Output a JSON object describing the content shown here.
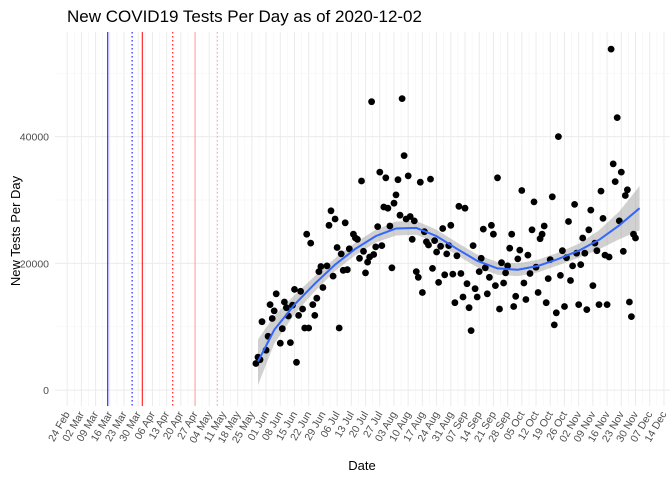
{
  "chart_data": {
    "type": "scatter",
    "title": "New COVID19 Tests Per Day as of 2020-12-02",
    "xlabel": "Date",
    "ylabel": "New Tests Per Day",
    "x_range": [
      "2020-02-18",
      "2020-12-17"
    ],
    "ylim": [
      -2500,
      56500
    ],
    "y_ticks": [
      0,
      20000,
      40000
    ],
    "x_ticks": [
      {
        "date": "2020-02-24",
        "label": "24 Feb"
      },
      {
        "date": "2020-03-02",
        "label": "02 Mar"
      },
      {
        "date": "2020-03-09",
        "label": "09 Mar"
      },
      {
        "date": "2020-03-16",
        "label": "16 Mar"
      },
      {
        "date": "2020-03-23",
        "label": "23 Mar"
      },
      {
        "date": "2020-03-30",
        "label": "30 Mar"
      },
      {
        "date": "2020-04-06",
        "label": "06 Apr"
      },
      {
        "date": "2020-04-13",
        "label": "13 Apr"
      },
      {
        "date": "2020-04-20",
        "label": "20 Apr"
      },
      {
        "date": "2020-04-27",
        "label": "27 Apr"
      },
      {
        "date": "2020-05-04",
        "label": "04 May"
      },
      {
        "date": "2020-05-11",
        "label": "11 May"
      },
      {
        "date": "2020-05-18",
        "label": "18 May"
      },
      {
        "date": "2020-05-25",
        "label": "25 May"
      },
      {
        "date": "2020-06-01",
        "label": "01 Jun"
      },
      {
        "date": "2020-06-08",
        "label": "08 Jun"
      },
      {
        "date": "2020-06-15",
        "label": "15 Jun"
      },
      {
        "date": "2020-06-22",
        "label": "22 Jun"
      },
      {
        "date": "2020-06-29",
        "label": "29 Jun"
      },
      {
        "date": "2020-07-06",
        "label": "06 Jul"
      },
      {
        "date": "2020-07-13",
        "label": "13 Jul"
      },
      {
        "date": "2020-07-20",
        "label": "20 Jul"
      },
      {
        "date": "2020-07-27",
        "label": "27 Jul"
      },
      {
        "date": "2020-08-03",
        "label": "03 Aug"
      },
      {
        "date": "2020-08-10",
        "label": "10 Aug"
      },
      {
        "date": "2020-08-17",
        "label": "17 Aug"
      },
      {
        "date": "2020-08-24",
        "label": "24 Aug"
      },
      {
        "date": "2020-08-31",
        "label": "31 Aug"
      },
      {
        "date": "2020-09-07",
        "label": "07 Sep"
      },
      {
        "date": "2020-09-14",
        "label": "14 Sep"
      },
      {
        "date": "2020-09-21",
        "label": "21 Sep"
      },
      {
        "date": "2020-09-28",
        "label": "28 Sep"
      },
      {
        "date": "2020-10-05",
        "label": "05 Oct"
      },
      {
        "date": "2020-10-12",
        "label": "12 Oct"
      },
      {
        "date": "2020-10-19",
        "label": "19 Oct"
      },
      {
        "date": "2020-10-26",
        "label": "26 Oct"
      },
      {
        "date": "2020-11-02",
        "label": "02 Nov"
      },
      {
        "date": "2020-11-09",
        "label": "09 Nov"
      },
      {
        "date": "2020-11-16",
        "label": "16 Nov"
      },
      {
        "date": "2020-11-23",
        "label": "23 Nov"
      },
      {
        "date": "2020-11-30",
        "label": "30 Nov"
      },
      {
        "date": "2020-12-07",
        "label": "07 Dec"
      },
      {
        "date": "2020-12-14",
        "label": "14 Dec"
      }
    ],
    "grid": true,
    "legend": "none",
    "point_color": "#000000",
    "trend_color": "#3366ff",
    "band_color": "#999999",
    "vlines": [
      {
        "date": "2020-03-15",
        "color": "#0000ff",
        "style": "solid"
      },
      {
        "date": "2020-03-27",
        "color": "#0000ff",
        "style": "dotted"
      },
      {
        "date": "2020-04-01",
        "color": "#ff0000",
        "style": "solid"
      },
      {
        "date": "2020-04-16",
        "color": "#ff0000",
        "style": "dotted"
      },
      {
        "date": "2020-04-27",
        "color": "#ff9999",
        "style": "solid"
      },
      {
        "date": "2020-05-08",
        "color": "#ff9999",
        "style": "dotted"
      }
    ],
    "trend": [
      {
        "date": "2020-05-28",
        "y": 4500,
        "lo": 800,
        "hi": 8000
      },
      {
        "date": "2020-06-05",
        "y": 9500,
        "lo": 7300,
        "hi": 11700
      },
      {
        "date": "2020-06-15",
        "y": 13500,
        "lo": 12000,
        "hi": 15000
      },
      {
        "date": "2020-06-25",
        "y": 16800,
        "lo": 15600,
        "hi": 18000
      },
      {
        "date": "2020-07-05",
        "y": 19800,
        "lo": 18800,
        "hi": 20800
      },
      {
        "date": "2020-07-15",
        "y": 22300,
        "lo": 21300,
        "hi": 23300
      },
      {
        "date": "2020-07-25",
        "y": 24300,
        "lo": 23300,
        "hi": 25300
      },
      {
        "date": "2020-08-04",
        "y": 25500,
        "lo": 24400,
        "hi": 26600
      },
      {
        "date": "2020-08-14",
        "y": 25600,
        "lo": 24500,
        "hi": 26700
      },
      {
        "date": "2020-08-24",
        "y": 24300,
        "lo": 23300,
        "hi": 25300
      },
      {
        "date": "2020-09-03",
        "y": 22300,
        "lo": 21300,
        "hi": 23300
      },
      {
        "date": "2020-09-13",
        "y": 20400,
        "lo": 19400,
        "hi": 21400
      },
      {
        "date": "2020-09-23",
        "y": 19200,
        "lo": 18200,
        "hi": 20200
      },
      {
        "date": "2020-10-03",
        "y": 19000,
        "lo": 18000,
        "hi": 20000
      },
      {
        "date": "2020-10-13",
        "y": 19600,
        "lo": 18600,
        "hi": 20600
      },
      {
        "date": "2020-10-23",
        "y": 20700,
        "lo": 19700,
        "hi": 21700
      },
      {
        "date": "2020-11-02",
        "y": 22000,
        "lo": 20900,
        "hi": 23100
      },
      {
        "date": "2020-11-12",
        "y": 23700,
        "lo": 22200,
        "hi": 25200
      },
      {
        "date": "2020-11-22",
        "y": 26000,
        "lo": 23800,
        "hi": 28200
      },
      {
        "date": "2020-12-02",
        "y": 28700,
        "lo": 25200,
        "hi": 32200
      }
    ],
    "points": [
      [
        "2020-05-27",
        4200
      ],
      [
        "2020-05-28",
        5200
      ],
      [
        "2020-05-29",
        4800
      ],
      [
        "2020-05-30",
        10800
      ],
      [
        "2020-06-01",
        6300
      ],
      [
        "2020-06-02",
        8500
      ],
      [
        "2020-06-03",
        13500
      ],
      [
        "2020-06-04",
        11300
      ],
      [
        "2020-06-05",
        12500
      ],
      [
        "2020-06-06",
        15200
      ],
      [
        "2020-06-08",
        7400
      ],
      [
        "2020-06-09",
        9700
      ],
      [
        "2020-06-10",
        13900
      ],
      [
        "2020-06-11",
        13000
      ],
      [
        "2020-06-12",
        11700
      ],
      [
        "2020-06-13",
        7500
      ],
      [
        "2020-06-14",
        13400
      ],
      [
        "2020-06-15",
        15900
      ],
      [
        "2020-06-16",
        4400
      ],
      [
        "2020-06-17",
        11800
      ],
      [
        "2020-06-18",
        15600
      ],
      [
        "2020-06-19",
        12800
      ],
      [
        "2020-06-20",
        9800
      ],
      [
        "2020-06-21",
        24600
      ],
      [
        "2020-06-22",
        9800
      ],
      [
        "2020-06-23",
        23200
      ],
      [
        "2020-06-24",
        13500
      ],
      [
        "2020-06-25",
        11800
      ],
      [
        "2020-06-26",
        14500
      ],
      [
        "2020-06-27",
        18700
      ],
      [
        "2020-06-28",
        19500
      ],
      [
        "2020-06-29",
        16200
      ],
      [
        "2020-07-01",
        19600
      ],
      [
        "2020-07-02",
        26000
      ],
      [
        "2020-07-03",
        28300
      ],
      [
        "2020-07-04",
        18000
      ],
      [
        "2020-07-05",
        27000
      ],
      [
        "2020-07-06",
        22500
      ],
      [
        "2020-07-07",
        9800
      ],
      [
        "2020-07-08",
        21500
      ],
      [
        "2020-07-09",
        18900
      ],
      [
        "2020-07-10",
        26400
      ],
      [
        "2020-07-11",
        19000
      ],
      [
        "2020-07-12",
        22300
      ],
      [
        "2020-07-14",
        24600
      ],
      [
        "2020-07-15",
        24000
      ],
      [
        "2020-07-16",
        23800
      ],
      [
        "2020-07-17",
        20800
      ],
      [
        "2020-07-18",
        33000
      ],
      [
        "2020-07-19",
        21900
      ],
      [
        "2020-07-20",
        18500
      ],
      [
        "2020-07-21",
        20200
      ],
      [
        "2020-07-22",
        21000
      ],
      [
        "2020-07-23",
        45500
      ],
      [
        "2020-07-24",
        21400
      ],
      [
        "2020-07-25",
        22600
      ],
      [
        "2020-07-26",
        25800
      ],
      [
        "2020-07-27",
        34400
      ],
      [
        "2020-07-28",
        22800
      ],
      [
        "2020-07-29",
        28900
      ],
      [
        "2020-07-30",
        33500
      ],
      [
        "2020-07-31",
        28700
      ],
      [
        "2020-08-01",
        25900
      ],
      [
        "2020-08-02",
        19300
      ],
      [
        "2020-08-03",
        29500
      ],
      [
        "2020-08-04",
        30800
      ],
      [
        "2020-08-05",
        33200
      ],
      [
        "2020-08-06",
        27600
      ],
      [
        "2020-08-07",
        46000
      ],
      [
        "2020-08-08",
        37000
      ],
      [
        "2020-08-09",
        27000
      ],
      [
        "2020-08-10",
        33800
      ],
      [
        "2020-08-11",
        27400
      ],
      [
        "2020-08-12",
        23800
      ],
      [
        "2020-08-13",
        26700
      ],
      [
        "2020-08-14",
        18700
      ],
      [
        "2020-08-15",
        17800
      ],
      [
        "2020-08-16",
        32800
      ],
      [
        "2020-08-17",
        15400
      ],
      [
        "2020-08-18",
        25000
      ],
      [
        "2020-08-19",
        23400
      ],
      [
        "2020-08-20",
        22900
      ],
      [
        "2020-08-21",
        33300
      ],
      [
        "2020-08-22",
        19200
      ],
      [
        "2020-08-23",
        23600
      ],
      [
        "2020-08-24",
        21800
      ],
      [
        "2020-08-25",
        17000
      ],
      [
        "2020-08-26",
        22700
      ],
      [
        "2020-08-27",
        25500
      ],
      [
        "2020-08-28",
        18200
      ],
      [
        "2020-08-29",
        21500
      ],
      [
        "2020-08-30",
        22800
      ],
      [
        "2020-08-31",
        26000
      ],
      [
        "2020-09-01",
        18300
      ],
      [
        "2020-09-02",
        13800
      ],
      [
        "2020-09-03",
        21200
      ],
      [
        "2020-09-04",
        29000
      ],
      [
        "2020-09-05",
        18400
      ],
      [
        "2020-09-06",
        14700
      ],
      [
        "2020-09-07",
        28700
      ],
      [
        "2020-09-08",
        16800
      ],
      [
        "2020-09-09",
        13000
      ],
      [
        "2020-09-10",
        9400
      ],
      [
        "2020-09-11",
        22800
      ],
      [
        "2020-09-12",
        16000
      ],
      [
        "2020-09-13",
        14700
      ],
      [
        "2020-09-14",
        18700
      ],
      [
        "2020-09-15",
        20800
      ],
      [
        "2020-09-16",
        25400
      ],
      [
        "2020-09-17",
        19300
      ],
      [
        "2020-09-18",
        15200
      ],
      [
        "2020-09-19",
        17800
      ],
      [
        "2020-09-20",
        26000
      ],
      [
        "2020-09-21",
        24600
      ],
      [
        "2020-09-22",
        16500
      ],
      [
        "2020-09-23",
        33500
      ],
      [
        "2020-09-24",
        12800
      ],
      [
        "2020-09-25",
        20100
      ],
      [
        "2020-09-26",
        16900
      ],
      [
        "2020-09-27",
        18500
      ],
      [
        "2020-09-28",
        19600
      ],
      [
        "2020-09-29",
        22400
      ],
      [
        "2020-09-30",
        24600
      ],
      [
        "2020-10-01",
        13200
      ],
      [
        "2020-10-02",
        14800
      ],
      [
        "2020-10-03",
        20700
      ],
      [
        "2020-10-04",
        22100
      ],
      [
        "2020-10-05",
        31500
      ],
      [
        "2020-10-06",
        16900
      ],
      [
        "2020-10-07",
        14300
      ],
      [
        "2020-10-08",
        21300
      ],
      [
        "2020-10-09",
        18400
      ],
      [
        "2020-10-10",
        25300
      ],
      [
        "2020-10-11",
        29700
      ],
      [
        "2020-10-12",
        19400
      ],
      [
        "2020-10-13",
        15400
      ],
      [
        "2020-10-14",
        23900
      ],
      [
        "2020-10-15",
        24600
      ],
      [
        "2020-10-16",
        25900
      ],
      [
        "2020-10-17",
        13800
      ],
      [
        "2020-10-18",
        17600
      ],
      [
        "2020-10-19",
        20600
      ],
      [
        "2020-10-20",
        30500
      ],
      [
        "2020-10-21",
        10300
      ],
      [
        "2020-10-22",
        12200
      ],
      [
        "2020-10-23",
        40000
      ],
      [
        "2020-10-24",
        18100
      ],
      [
        "2020-10-25",
        22000
      ],
      [
        "2020-10-26",
        13200
      ],
      [
        "2020-10-27",
        20900
      ],
      [
        "2020-10-28",
        26600
      ],
      [
        "2020-10-29",
        17300
      ],
      [
        "2020-10-30",
        19600
      ],
      [
        "2020-10-31",
        29300
      ],
      [
        "2020-11-01",
        21600
      ],
      [
        "2020-11-02",
        13500
      ],
      [
        "2020-11-03",
        19800
      ],
      [
        "2020-11-04",
        24000
      ],
      [
        "2020-11-05",
        21600
      ],
      [
        "2020-11-06",
        12700
      ],
      [
        "2020-11-07",
        25300
      ],
      [
        "2020-11-08",
        28400
      ],
      [
        "2020-11-09",
        16500
      ],
      [
        "2020-11-10",
        23200
      ],
      [
        "2020-11-11",
        22000
      ],
      [
        "2020-11-12",
        13500
      ],
      [
        "2020-11-13",
        31400
      ],
      [
        "2020-11-14",
        27100
      ],
      [
        "2020-11-15",
        21300
      ],
      [
        "2020-11-16",
        13500
      ],
      [
        "2020-11-17",
        21000
      ],
      [
        "2020-11-18",
        53800
      ],
      [
        "2020-11-19",
        35700
      ],
      [
        "2020-11-20",
        32900
      ],
      [
        "2020-11-21",
        43000
      ],
      [
        "2020-11-22",
        26700
      ],
      [
        "2020-11-23",
        34400
      ],
      [
        "2020-11-24",
        21900
      ],
      [
        "2020-11-25",
        30700
      ],
      [
        "2020-11-26",
        31600
      ],
      [
        "2020-11-27",
        13900
      ],
      [
        "2020-11-28",
        11600
      ],
      [
        "2020-11-29",
        24600
      ],
      [
        "2020-11-30",
        24000
      ]
    ]
  }
}
